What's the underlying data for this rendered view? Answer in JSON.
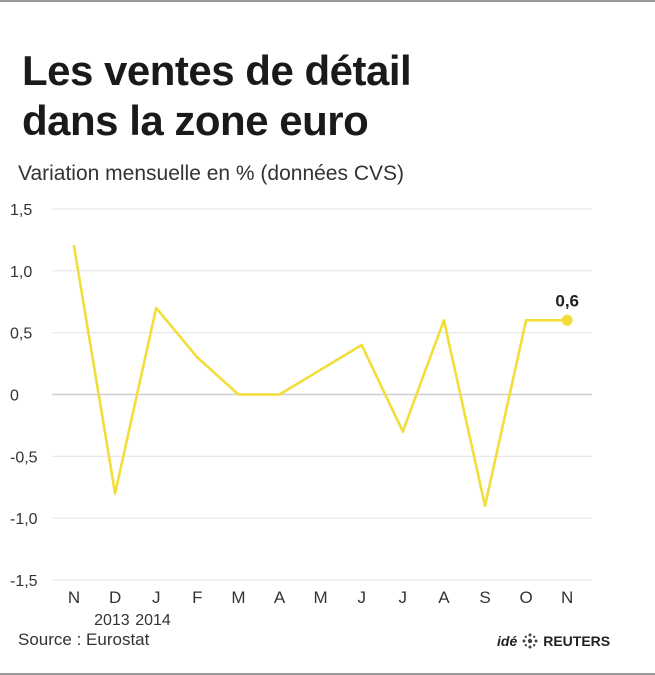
{
  "title_line1": "Les ventes de détail",
  "title_line2": "dans la zone euro",
  "subtitle": "Variation mensuelle en % (données CVS)",
  "source": "Source : Eurostat",
  "credit": {
    "ide": "idé",
    "brand": "REUTERS"
  },
  "colors": {
    "line": "#f2dd3a",
    "grid": "#e6e6e6",
    "zero_line": "#cfcfcf",
    "text": "#333333"
  },
  "chart_data": {
    "type": "line",
    "title": "Les ventes de détail dans la zone euro",
    "subtitle": "Variation mensuelle en % (données CVS)",
    "x": [
      "N",
      "D",
      "J",
      "F",
      "M",
      "A",
      "M",
      "J",
      "J",
      "A",
      "S",
      "O",
      "N"
    ],
    "year_labels": [
      {
        "index": 1,
        "label": "2013"
      },
      {
        "index": 2,
        "label": "2014"
      }
    ],
    "series": [
      {
        "values": [
          1.2,
          -0.8,
          0.7,
          0.3,
          0.0,
          0.0,
          0.2,
          0.4,
          -0.3,
          0.6,
          -0.9,
          0.6,
          0.6
        ]
      }
    ],
    "y_ticks": [
      "1,5",
      "1,0",
      "0,5",
      "0",
      "-0,5",
      "-1,0",
      "-1,5"
    ],
    "y_tick_values": [
      1.5,
      1.0,
      0.5,
      0.0,
      -0.5,
      -1.0,
      -1.5
    ],
    "ylim": [
      -1.5,
      1.5
    ],
    "last_value_label": "0,6",
    "grid": true,
    "legend": "none"
  }
}
